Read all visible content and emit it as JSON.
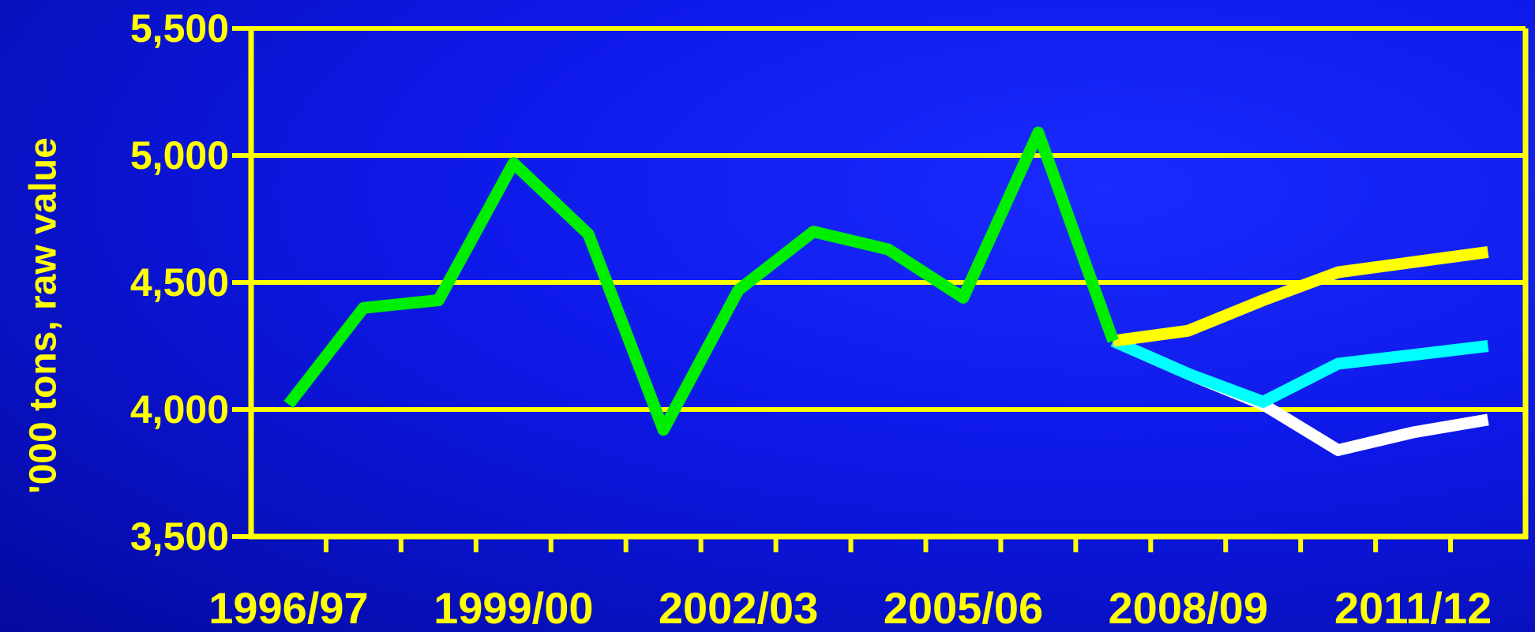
{
  "colors": {
    "axis": "#ffff00",
    "text": "#ffff00",
    "grid": "#ffff00"
  },
  "chart_data": {
    "type": "line",
    "title": "",
    "xlabel": "",
    "ylabel": "'000 tons, raw value",
    "ylim": [
      3500,
      5500
    ],
    "yticks": [
      3500,
      4000,
      4500,
      5000,
      5500
    ],
    "ytick_labels": [
      "3,500",
      "4,000",
      "4,500",
      "5,000",
      "5,500"
    ],
    "x": [
      "1996/97",
      "1997/98",
      "1998/99",
      "1999/00",
      "2000/01",
      "2001/02",
      "2002/03",
      "2003/04",
      "2004/05",
      "2005/06",
      "2006/07",
      "2007/08",
      "2008/09",
      "2009/10",
      "2010/11",
      "2011/12",
      "2012/13"
    ],
    "xtick_labels_shown": [
      "1996/97",
      "1999/00",
      "2002/03",
      "2005/06",
      "2008/09",
      "2011/12"
    ],
    "grid": true,
    "legend": "none",
    "series": [
      {
        "color": "#00ee00",
        "values": [
          4020,
          4400,
          4430,
          4970,
          4690,
          3920,
          4470,
          4700,
          4630,
          4440,
          5090,
          4270,
          null,
          null,
          null,
          null,
          null
        ]
      },
      {
        "color": "#ffffff",
        "values": [
          null,
          null,
          null,
          null,
          null,
          null,
          null,
          null,
          null,
          null,
          null,
          4270,
          4140,
          4020,
          3840,
          3910,
          3960
        ]
      },
      {
        "color": "#00ffff",
        "values": [
          null,
          null,
          null,
          null,
          null,
          null,
          null,
          null,
          null,
          null,
          null,
          4270,
          4140,
          4030,
          4180,
          4215,
          4250
        ]
      },
      {
        "color": "#ffff00",
        "values": [
          null,
          null,
          null,
          null,
          null,
          null,
          null,
          null,
          null,
          null,
          null,
          4270,
          4310,
          4430,
          4540,
          4580,
          4620
        ]
      }
    ]
  }
}
